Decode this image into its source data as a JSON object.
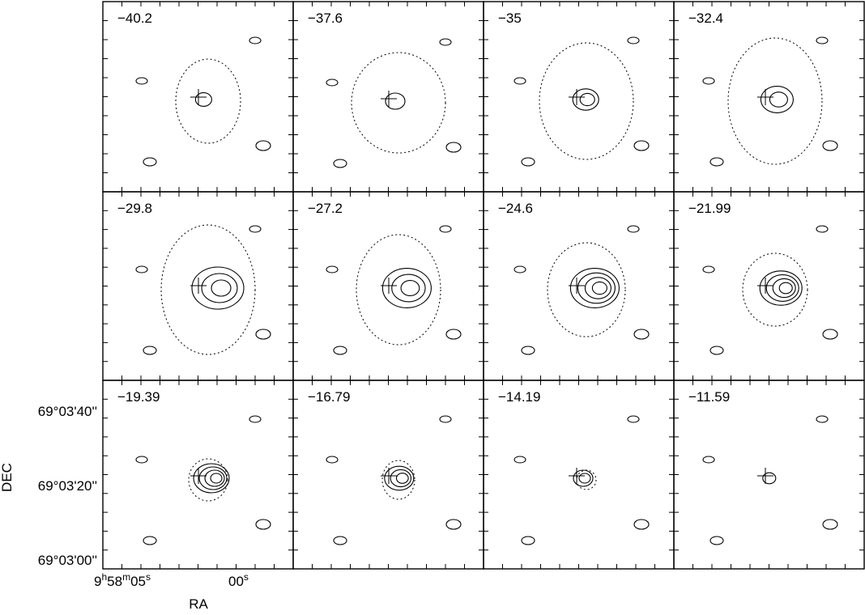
{
  "panels": [
    {
      "label": "−40.2"
    },
    {
      "label": "−37.6"
    },
    {
      "label": "−35"
    },
    {
      "label": "−32.4"
    },
    {
      "label": "−29.8"
    },
    {
      "label": "−27.2"
    },
    {
      "label": "−24.6"
    },
    {
      "label": "−21.99"
    },
    {
      "label": "−19.39"
    },
    {
      "label": "−16.79"
    },
    {
      "label": "−14.19"
    },
    {
      "label": "−11.59"
    }
  ],
  "y_axis": {
    "label": "DEC",
    "ticks": [
      "69°03'40''",
      "69°03'20''",
      "69°03'00''"
    ]
  },
  "x_axis": {
    "label": "RA",
    "ticks": [
      [
        "9",
        "h",
        "58",
        "m",
        "05",
        "s"
      ],
      [
        "00",
        "s"
      ]
    ]
  }
}
